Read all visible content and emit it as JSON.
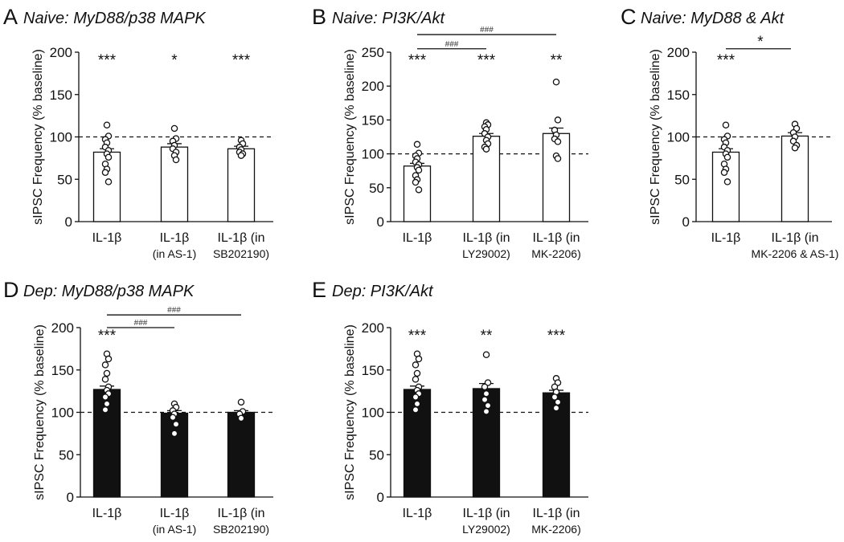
{
  "chart_data": [
    {
      "type": "bar",
      "panel": "A",
      "title": "Naive: MyD88/p38 MAPK",
      "ylabel": "sIPSC Frequency (% baseline)",
      "ylim": [
        0,
        200
      ],
      "yticks": [
        0,
        50,
        100,
        150,
        200
      ],
      "reference_line": 100,
      "bar_fill": "#ffffff",
      "categories": [
        [
          "IL-1β"
        ],
        [
          "IL-1β",
          "(in AS-1)"
        ],
        [
          "IL-1β (in",
          "SB202190)"
        ]
      ],
      "values": [
        82,
        88,
        86
      ],
      "sem": [
        4,
        4,
        3
      ],
      "points": [
        [
          114,
          101,
          97,
          93,
          88,
          84,
          80,
          76,
          68,
          62,
          58,
          47
        ],
        [
          110,
          98,
          95,
          90,
          86,
          82,
          78,
          73
        ],
        [
          96,
          92,
          88,
          85,
          82,
          80,
          78
        ]
      ],
      "stars": [
        "***",
        "*",
        "***"
      ],
      "brackets": []
    },
    {
      "type": "bar",
      "panel": "B",
      "title": "Naive: PI3K/Akt",
      "ylabel": "sIPSC Frequency (% baseline)",
      "ylim": [
        0,
        250
      ],
      "yticks": [
        0,
        50,
        100,
        150,
        200,
        250
      ],
      "reference_line": 100,
      "bar_fill": "#ffffff",
      "categories": [
        [
          "IL-1β"
        ],
        [
          "IL-1β (in",
          "LY29002)"
        ],
        [
          "IL-1β (in",
          "MK-2206)"
        ]
      ],
      "values": [
        82,
        126,
        130
      ],
      "sem": [
        4,
        4,
        8
      ],
      "points": [
        [
          114,
          101,
          97,
          93,
          88,
          84,
          80,
          76,
          68,
          62,
          58,
          47
        ],
        [
          146,
          143,
          140,
          136,
          130,
          125,
          120,
          115,
          110,
          107
        ],
        [
          206,
          150,
          135,
          128,
          122,
          118,
          97,
          93
        ]
      ],
      "stars": [
        "***",
        "***",
        "**"
      ],
      "brackets": [
        {
          "from": 0,
          "to": 1,
          "y": 255,
          "label": "###"
        },
        {
          "from": 0,
          "to": 2,
          "y": 276,
          "label": "###"
        }
      ]
    },
    {
      "type": "bar",
      "panel": "C",
      "title": "Naive: MyD88 & Akt",
      "ylabel": "sIPSC Frequency (% baseline)",
      "ylim": [
        0,
        200
      ],
      "yticks": [
        0,
        50,
        100,
        150,
        200
      ],
      "reference_line": 100,
      "bar_fill": "#ffffff",
      "categories": [
        [
          "IL-1β"
        ],
        [
          "IL-1β (in",
          "MK-2206 & AS-1)"
        ]
      ],
      "values": [
        82,
        101
      ],
      "sem": [
        4,
        4
      ],
      "points": [
        [
          114,
          101,
          97,
          93,
          88,
          84,
          80,
          76,
          68,
          62,
          58,
          47
        ],
        [
          115,
          110,
          105,
          100,
          95,
          90,
          87
        ]
      ],
      "stars": [
        "***",
        ""
      ],
      "brackets": [
        {
          "from": 0,
          "to": 1,
          "y": 204,
          "label": "*"
        }
      ]
    },
    {
      "type": "bar",
      "panel": "D",
      "title": "Dep: MyD88/p38 MAPK",
      "ylabel": "sIPSC Frequency (% baseline)",
      "ylim": [
        0,
        200
      ],
      "yticks": [
        0,
        50,
        100,
        150,
        200
      ],
      "reference_line": 100,
      "bar_fill": "#111111",
      "categories": [
        [
          "IL-1β"
        ],
        [
          "IL-1β",
          "(in AS-1)"
        ],
        [
          "IL-1β (in",
          "SB202190)"
        ]
      ],
      "values": [
        127,
        99,
        100
      ],
      "sem": [
        4,
        3,
        2
      ],
      "points": [
        [
          169,
          163,
          156,
          146,
          139,
          130,
          126,
          122,
          118,
          110,
          103
        ],
        [
          110,
          106,
          102,
          98,
          94,
          86,
          75
        ],
        [
          112,
          101,
          98,
          93
        ]
      ],
      "stars": [
        "***",
        "",
        ""
      ],
      "brackets": [
        {
          "from": 0,
          "to": 1,
          "y": 200,
          "label": "###"
        },
        {
          "from": 0,
          "to": 2,
          "y": 215,
          "label": "###"
        }
      ]
    },
    {
      "type": "bar",
      "panel": "E",
      "title": "Dep: PI3K/Akt",
      "ylabel": "sIPSC Frequency (% baseline)",
      "ylim": [
        0,
        200
      ],
      "yticks": [
        0,
        50,
        100,
        150,
        200
      ],
      "reference_line": 100,
      "bar_fill": "#111111",
      "categories": [
        [
          "IL-1β"
        ],
        [
          "IL-1β (in",
          "LY29002)"
        ],
        [
          "IL-1β (in",
          "MK-2206)"
        ]
      ],
      "values": [
        127,
        128,
        123
      ],
      "sem": [
        4,
        6,
        3
      ],
      "points": [
        [
          169,
          163,
          156,
          146,
          139,
          130,
          126,
          122,
          118,
          110,
          103
        ],
        [
          168,
          135,
          130,
          122,
          115,
          108,
          101
        ],
        [
          140,
          135,
          130,
          124,
          118,
          112,
          105
        ]
      ],
      "stars": [
        "***",
        "**",
        "***"
      ],
      "brackets": []
    }
  ]
}
